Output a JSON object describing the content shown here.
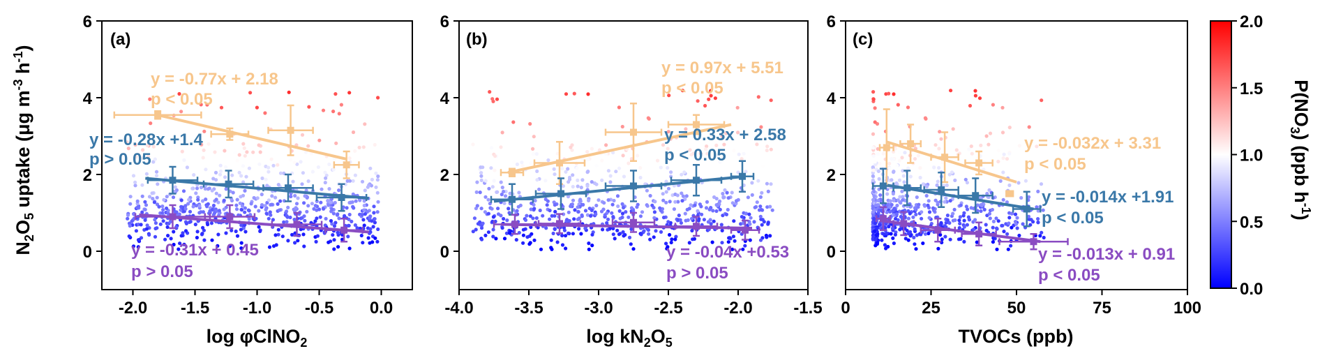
{
  "figure": {
    "ylabel_main": "N",
    "ylabel_sub": "2",
    "ylabel_main2": "O",
    "ylabel_sub2": "5",
    "ylabel_rest": " uptake (μg m",
    "ylabel_sup1": "-3",
    "ylabel_mid": " h",
    "ylabel_sup2": "-1",
    "ylabel_close": ")"
  },
  "colorbar": {
    "label_main": "P(NO",
    "label_sub": "3",
    "label_rest": ") (ppb h",
    "label_sup": "-1",
    "label_close": ")",
    "range": [
      0.0,
      2.0
    ],
    "ticks": [
      "0.0",
      "0.5",
      "1.0",
      "1.5",
      "2.0"
    ],
    "colors": [
      "#0000ff",
      "#ffffff",
      "#ff0000"
    ]
  },
  "colors": {
    "orange": "#f7c68c",
    "blue": "#3a78a8",
    "purple": "#8a4cc2"
  },
  "chart_data": [
    {
      "type": "scatter",
      "panel_label": "(a)",
      "xlabel_main": "log φClNO",
      "xlabel_sub": "2",
      "xlim": [
        -2.25,
        0.25
      ],
      "ylim": [
        -1,
        6
      ],
      "xticks": [
        "-2.0",
        "-1.5",
        "-1.0",
        "-0.5",
        "0.0"
      ],
      "xtick_values": [
        -2.0,
        -1.5,
        -1.0,
        -0.5,
        0.0
      ],
      "yticks": [
        "0",
        "2",
        "4",
        "6"
      ],
      "ytick_values": [
        0,
        2,
        4,
        6
      ],
      "scatter_x_range": [
        -2.05,
        -0.02
      ],
      "series": [
        {
          "color_key": "orange",
          "x": [
            -1.8,
            -1.22,
            -0.73,
            -0.28
          ],
          "y": [
            3.55,
            3.05,
            3.15,
            2.25
          ],
          "xerr": [
            0.35,
            0.15,
            0.18,
            0.1
          ],
          "yerr": [
            0.1,
            0.15,
            0.65,
            0.35
          ],
          "fit": {
            "x": [
              -1.8,
              -0.28
            ],
            "y": [
              3.55,
              2.4
            ]
          },
          "equation": "y = -0.77x + 2.18",
          "pvalue": "p < 0.05"
        },
        {
          "color_key": "blue",
          "x": [
            -1.68,
            -1.23,
            -0.75,
            -0.32
          ],
          "y": [
            1.85,
            1.75,
            1.65,
            1.4
          ],
          "xerr": [
            0.2,
            0.2,
            0.2,
            0.2
          ],
          "yerr": [
            0.35,
            0.35,
            0.35,
            0.35
          ],
          "fit": {
            "x": [
              -1.9,
              -0.1
            ],
            "y": [
              1.9,
              1.38
            ]
          },
          "equation": "y = -0.28x +1.4",
          "pvalue": "p > 0.05"
        },
        {
          "color_key": "purple",
          "x": [
            -1.68,
            -1.22,
            -0.68,
            -0.3
          ],
          "y": [
            0.9,
            0.9,
            0.7,
            0.55
          ],
          "xerr": [
            0.3,
            0.2,
            0.2,
            0.15
          ],
          "yerr": [
            0.3,
            0.3,
            0.3,
            0.3
          ],
          "fit": {
            "x": [
              -1.95,
              -0.1
            ],
            "y": [
              0.95,
              0.5
            ]
          },
          "equation": "y = -0.31x + 0.45",
          "pvalue": "p > 0.05"
        }
      ]
    },
    {
      "type": "scatter",
      "panel_label": "(b)",
      "xlabel_main": "log kN",
      "xlabel_sub": "2",
      "xlabel_main2": "O",
      "xlabel_sub2": "5",
      "xlim": [
        -4.0,
        -1.5
      ],
      "ylim": [
        -1,
        6
      ],
      "xticks": [
        "-4.0",
        "-3.5",
        "-3.0",
        "-2.5",
        "-2.0",
        "-1.5"
      ],
      "xtick_values": [
        -4.0,
        -3.5,
        -3.0,
        -2.5,
        -2.0,
        -1.5
      ],
      "yticks": [
        "0",
        "2",
        "4",
        "6"
      ],
      "ytick_values": [
        0,
        2,
        4,
        6
      ],
      "scatter_x_range": [
        -3.9,
        -1.75
      ],
      "series": [
        {
          "color_key": "orange",
          "x": [
            -3.62,
            -3.28,
            -2.75,
            -2.3
          ],
          "y": [
            2.05,
            2.3,
            3.1,
            3.3
          ],
          "xerr": [
            0.08,
            0.18,
            0.2,
            0.2
          ],
          "yerr": [
            0.1,
            0.55,
            0.75,
            0.25
          ],
          "fit": {
            "x": [
              -3.65,
              -2.05
            ],
            "y": [
              2.05,
              3.3
            ]
          },
          "equation": "y = 0.97x + 5.51",
          "pvalue": "p < 0.05"
        },
        {
          "color_key": "blue",
          "x": [
            -3.62,
            -3.27,
            -2.75,
            -2.3,
            -1.97
          ],
          "y": [
            1.35,
            1.5,
            1.7,
            1.85,
            1.95
          ],
          "xerr": [
            0.15,
            0.18,
            0.2,
            0.18,
            0.08
          ],
          "yerr": [
            0.4,
            0.4,
            0.4,
            0.4,
            0.4
          ],
          "fit": {
            "x": [
              -3.75,
              -1.95
            ],
            "y": [
              1.3,
              1.95
            ]
          },
          "equation": "y = 0.33x + 2.58",
          "pvalue": "p < 0.05"
        },
        {
          "color_key": "purple",
          "x": [
            -3.6,
            -3.28,
            -2.75,
            -2.3,
            -1.95
          ],
          "y": [
            0.7,
            0.72,
            0.75,
            0.65,
            0.55
          ],
          "xerr": [
            0.15,
            0.15,
            0.15,
            0.15,
            0.1
          ],
          "yerr": [
            0.25,
            0.25,
            0.25,
            0.25,
            0.25
          ],
          "fit": {
            "x": [
              -3.7,
              -1.9
            ],
            "y": [
              0.7,
              0.6
            ]
          },
          "equation": "y = -0.04x +0.53",
          "pvalue": "p > 0.05"
        }
      ]
    },
    {
      "type": "scatter",
      "panel_label": "(c)",
      "xlabel_main": "TVOCs (ppb)",
      "xlim": [
        0,
        100
      ],
      "ylim": [
        -1,
        6
      ],
      "xticks": [
        "0",
        "25",
        "50",
        "75",
        "100"
      ],
      "xtick_values": [
        0,
        25,
        50,
        75,
        100
      ],
      "yticks": [
        "0",
        "2",
        "4",
        "6"
      ],
      "ytick_values": [
        0,
        2,
        4,
        6
      ],
      "scatter_x_range": [
        8,
        58
      ],
      "series": [
        {
          "color_key": "orange",
          "x": [
            12,
            19,
            29,
            39,
            48
          ],
          "y": [
            2.7,
            2.8,
            2.45,
            2.3,
            1.5
          ],
          "xerr": [
            2,
            3,
            4,
            4,
            1
          ],
          "yerr": [
            1.0,
            0.5,
            0.65,
            0.3,
            0.05
          ],
          "fit": {
            "x": [
              12,
              50
            ],
            "y": [
              2.85,
              1.8
            ]
          },
          "equation": "y = -0.032x + 3.31",
          "pvalue": "p < 0.05"
        },
        {
          "color_key": "blue",
          "x": [
            11,
            18,
            28,
            38,
            53
          ],
          "y": [
            1.7,
            1.65,
            1.6,
            1.45,
            1.1
          ],
          "xerr": [
            3,
            4,
            5,
            5,
            4
          ],
          "yerr": [
            0.45,
            0.45,
            0.45,
            0.45,
            0.45
          ],
          "fit": {
            "x": [
              10,
              55
            ],
            "y": [
              1.75,
              1.1
            ]
          },
          "equation": "y = -0.014x +1.91",
          "pvalue": "p < 0.05"
        },
        {
          "color_key": "purple",
          "x": [
            11,
            17,
            27,
            39,
            55
          ],
          "y": [
            0.85,
            0.72,
            0.55,
            0.45,
            0.25
          ],
          "xerr": [
            2,
            3,
            5,
            5,
            10
          ],
          "yerr": [
            0.3,
            0.3,
            0.3,
            0.3,
            0.2
          ],
          "fit": {
            "x": [
              10,
              57
            ],
            "y": [
              0.8,
              0.25
            ]
          },
          "equation": "y = -0.013x + 0.91",
          "pvalue": "p < 0.05"
        }
      ]
    }
  ]
}
